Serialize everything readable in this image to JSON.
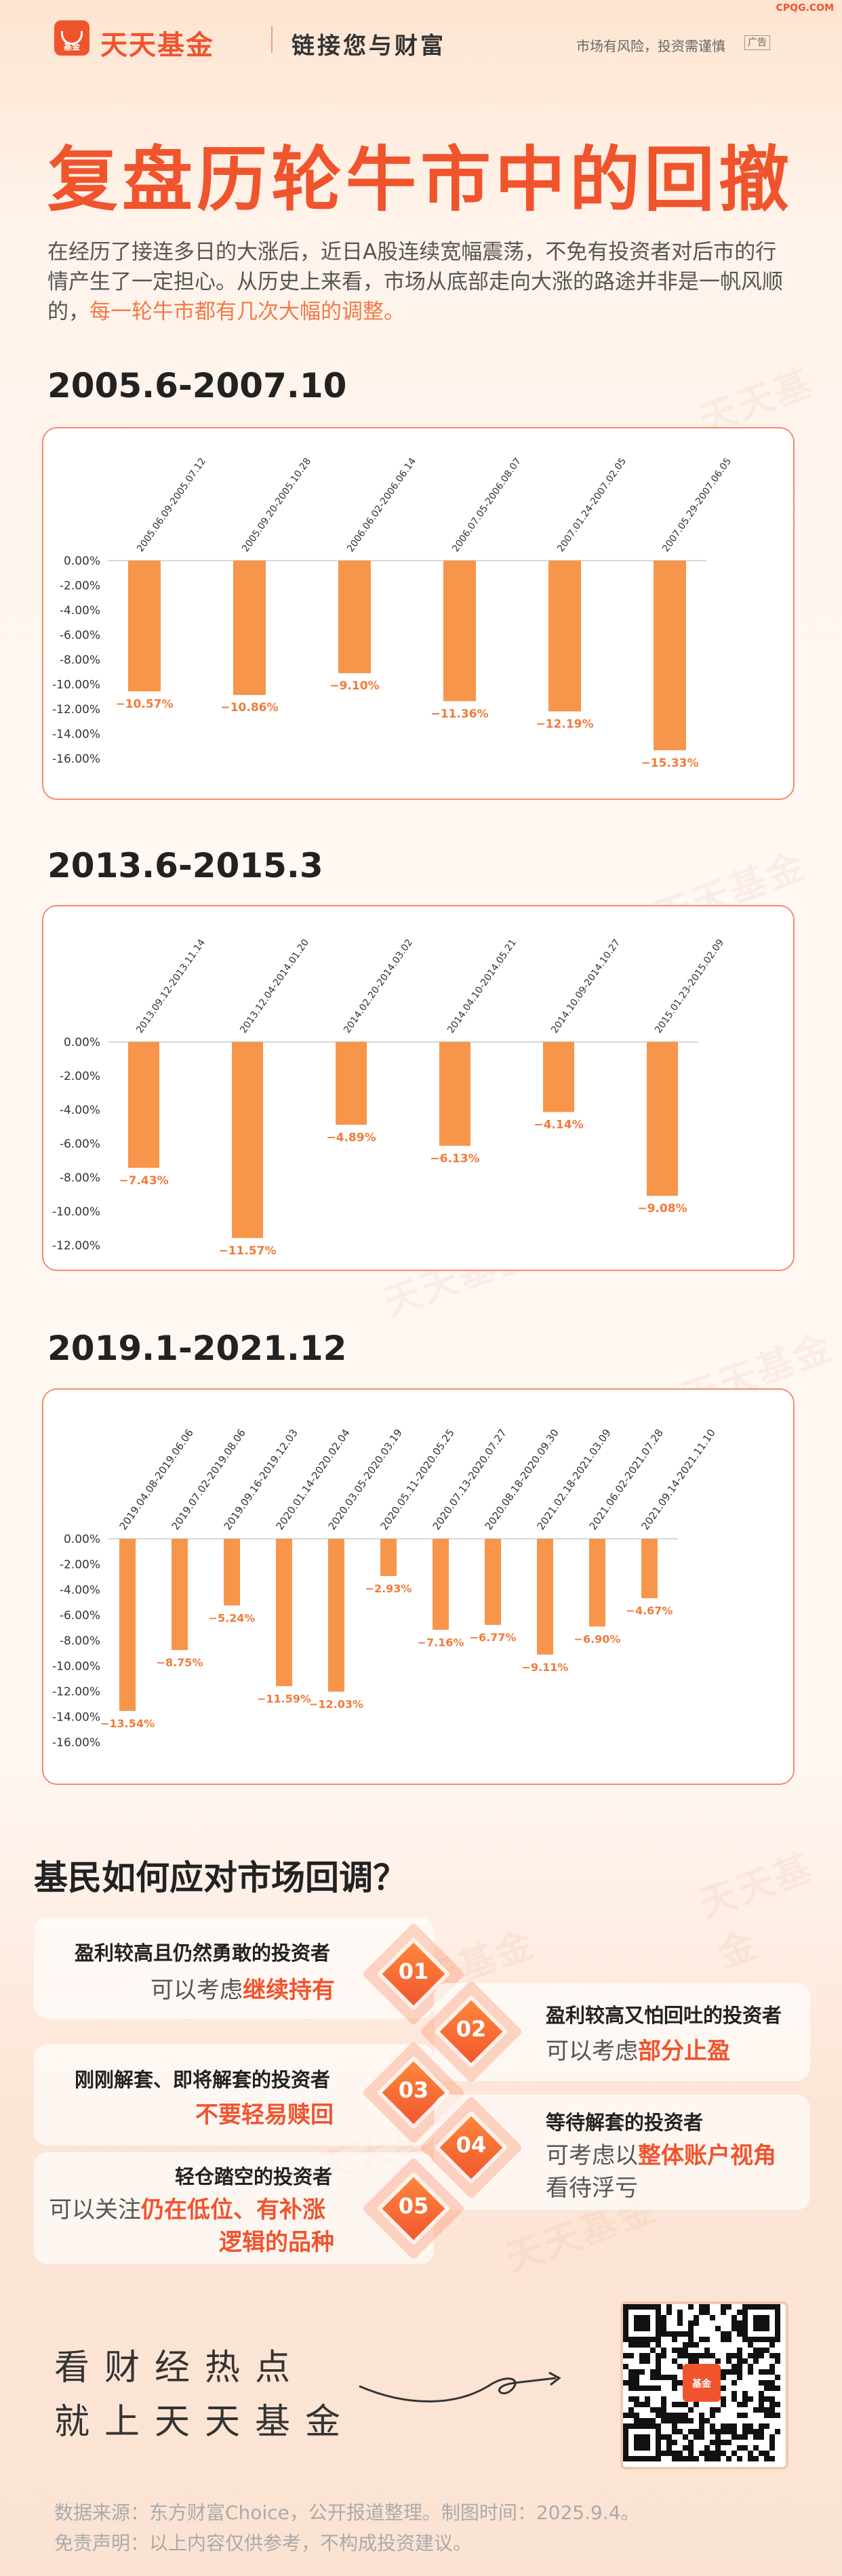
{
  "header": {
    "logo_text": "基金",
    "brand": "天天基金",
    "slogan": "链接您与财富",
    "risk": "市场有风险，投资需谨慎",
    "ad": "广告",
    "site": "CPQG.COM"
  },
  "title": "复盘历轮牛市中的回撤",
  "intro": {
    "text": "在经历了接连多日的大涨后，近日A股连续宽幅震荡，不免有投资者对后市的行情产生了一定担心。从历史上来看，市场从底部走向大涨的路途并非是一帆风顺的，",
    "highlight": "每一轮牛市都有几次大幅的调整。"
  },
  "watermark": "天天基金",
  "colors": {
    "accent": "#f0542d",
    "bar": "#f7954a",
    "label": "#f07a3a"
  },
  "chart_data": [
    {
      "type": "bar",
      "title": "2005.6-2007.10",
      "categories": [
        "2005.06.09-2005.07.12",
        "2005.09.20-2005.10.28",
        "2006.06.02-2006.06.14",
        "2006.07.05-2006.08.07",
        "2007.01.24-2007.02.05",
        "2007.05.29-2007.06.05"
      ],
      "values": [
        -10.57,
        -10.86,
        -9.1,
        -11.36,
        -12.19,
        -15.33
      ],
      "value_labels": [
        "−10.57%",
        "−10.86%",
        "−9.10%",
        "−11.36%",
        "−12.19%",
        "−15.33%"
      ],
      "yticks": [
        "0.00%",
        "-2.00%",
        "-4.00%",
        "-6.00%",
        "-8.00%",
        "-10.00%",
        "-12.00%",
        "-14.00%",
        "-16.00%"
      ],
      "ylim": [
        -16,
        0
      ]
    },
    {
      "type": "bar",
      "title": "2013.6-2015.3",
      "categories": [
        "2013.09.12-2013.11.14",
        "2013.12.04-2014.01.20",
        "2014.02.20-2014.03.02",
        "2014.04.10-2014.05.21",
        "2014.10.09-2014.10.27",
        "2015.01.23-2015.02.09"
      ],
      "values": [
        -7.43,
        -11.57,
        -4.89,
        -6.13,
        -4.14,
        -9.08
      ],
      "value_labels": [
        "−7.43%",
        "−11.57%",
        "−4.89%",
        "−6.13%",
        "−4.14%",
        "−9.08%"
      ],
      "yticks": [
        "0.00%",
        "-2.00%",
        "-4.00%",
        "-6.00%",
        "-8.00%",
        "-10.00%",
        "-12.00%"
      ],
      "ylim": [
        -12,
        0
      ]
    },
    {
      "type": "bar",
      "title": "2019.1-2021.12",
      "categories": [
        "2019.04.08-2019.06.06",
        "2019.07.02-2019.08.06",
        "2019.09.16-2019.12.03",
        "2020.01.14-2020.02.04",
        "2020.03.05-2020.03.19",
        "2020.05.11-2020.05.25",
        "2020.07.13-2020.07.27",
        "2020.08.18-2020.09.30",
        "2021.02.18-2021.03.09",
        "2021.06.02-2021.07.28",
        "2021.09.14-2021.11.10"
      ],
      "values": [
        -13.54,
        -8.75,
        -5.24,
        -11.59,
        -12.03,
        -2.93,
        -7.16,
        -6.77,
        -9.11,
        -6.9,
        -4.67
      ],
      "value_labels": [
        "−13.54%",
        "−8.75%",
        "−5.24%",
        "−11.59%",
        "−12.03%",
        "−2.93%",
        "−7.16%",
        "−6.77%",
        "−9.11%",
        "−6.90%",
        "−4.67%"
      ],
      "yticks": [
        "0.00%",
        "-2.00%",
        "-4.00%",
        "-6.00%",
        "-8.00%",
        "-10.00%",
        "-12.00%",
        "-14.00%",
        "-16.00%"
      ],
      "ylim": [
        -16,
        0
      ]
    }
  ],
  "advice": {
    "title": "基民如何应对市场回调？",
    "items": [
      {
        "num": "01",
        "who": "盈利较高且仍然勇敢的投资者",
        "pre": "可以考虑",
        "key": "继续持有",
        "post": ""
      },
      {
        "num": "02",
        "who": "盈利较高又怕回吐的投资者",
        "pre": "可以考虑",
        "key": "部分止盈",
        "post": ""
      },
      {
        "num": "03",
        "who": "刚刚解套、即将解套的投资者",
        "pre": "",
        "key": "不要轻易赎回",
        "post": ""
      },
      {
        "num": "04",
        "who": "等待解套的投资者",
        "pre": "可考虑以",
        "key": "整体账户视角",
        "post": "看待浮亏"
      },
      {
        "num": "05",
        "who": "轻仓踏空的投资者",
        "pre": "可以关注",
        "key": "仍在低位、有补涨",
        "post": "逻辑的品种"
      }
    ]
  },
  "footer": {
    "line1": "看财经热点",
    "line2": "就上天天基金",
    "qr_logo": "基金",
    "source": "数据来源：东方财富Choice，公开报道整理。制图时间：2025.9.4。",
    "disclaimer": "免责声明：以上内容仅供参考，不构成投资建议。"
  }
}
